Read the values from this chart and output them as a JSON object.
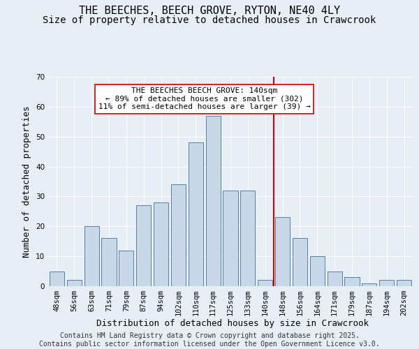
{
  "title": "THE BEECHES, BEECH GROVE, RYTON, NE40 4LY",
  "subtitle": "Size of property relative to detached houses in Crawcrook",
  "xlabel": "Distribution of detached houses by size in Crawcrook",
  "ylabel": "Number of detached properties",
  "categories": [
    "48sqm",
    "56sqm",
    "63sqm",
    "71sqm",
    "79sqm",
    "87sqm",
    "94sqm",
    "102sqm",
    "110sqm",
    "117sqm",
    "125sqm",
    "133sqm",
    "140sqm",
    "148sqm",
    "156sqm",
    "164sqm",
    "171sqm",
    "179sqm",
    "187sqm",
    "194sqm",
    "202sqm"
  ],
  "values": [
    5,
    2,
    20,
    16,
    12,
    27,
    28,
    34,
    48,
    57,
    32,
    32,
    2,
    23,
    16,
    10,
    5,
    3,
    1,
    2,
    2
  ],
  "bar_color": "#c8d8e8",
  "bar_edge_color": "#5580a0",
  "ref_line_color": "#cc0000",
  "annotation_text": "THE BEECHES BEECH GROVE: 140sqm\n← 89% of detached houses are smaller (302)\n11% of semi-detached houses are larger (39) →",
  "annotation_box_color": "#ffffff",
  "annotation_box_edge_color": "#cc0000",
  "ylim": [
    0,
    70
  ],
  "yticks": [
    0,
    10,
    20,
    30,
    40,
    50,
    60,
    70
  ],
  "background_color": "#e8eef5",
  "grid_color": "#ffffff",
  "footer_line1": "Contains HM Land Registry data © Crown copyright and database right 2025.",
  "footer_line2": "Contains public sector information licensed under the Open Government Licence v3.0.",
  "title_fontsize": 11,
  "subtitle_fontsize": 10,
  "axis_label_fontsize": 9,
  "tick_fontsize": 7.5,
  "annotation_fontsize": 8,
  "footer_fontsize": 7
}
